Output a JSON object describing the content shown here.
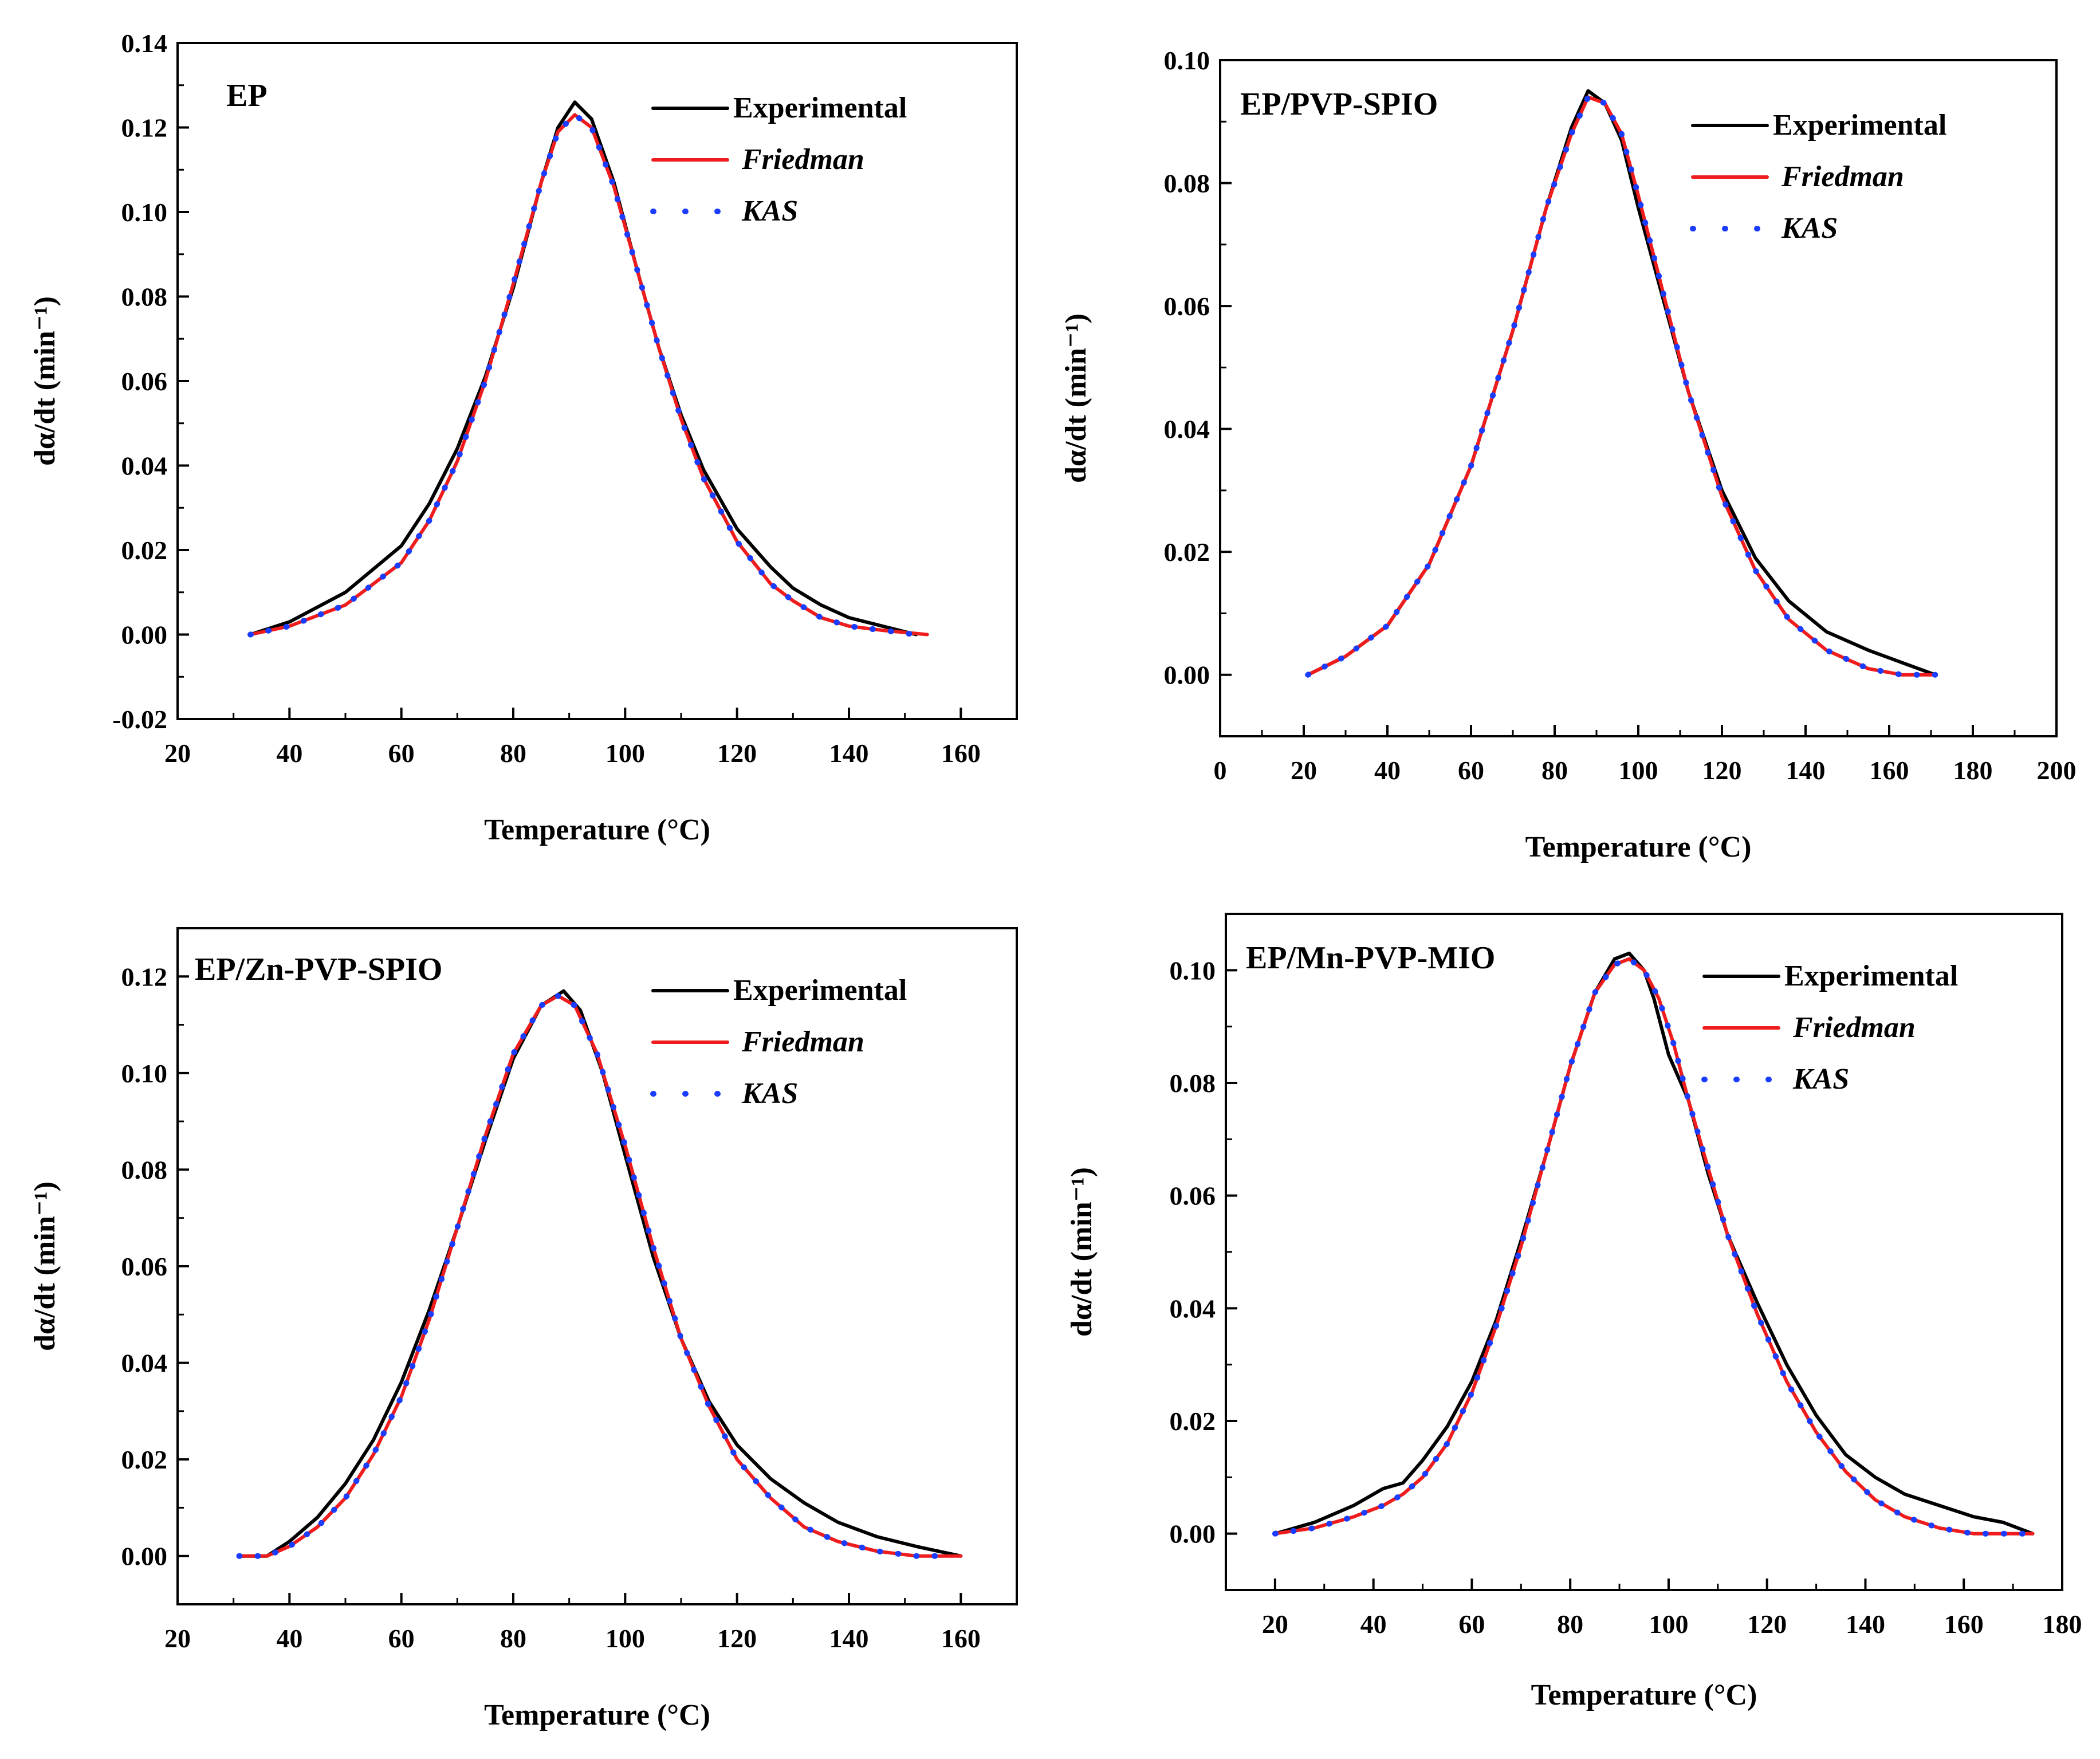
{
  "chart_data": [
    {
      "type": "line",
      "title": "EP",
      "xlabel": "Temperature (°C)",
      "ylabel": "dα/dt (min⁻¹)",
      "xlim": [
        20,
        170
      ],
      "ylim": [
        -0.02,
        0.14
      ],
      "xticks": [
        20,
        40,
        60,
        80,
        100,
        120,
        140,
        160
      ],
      "yticks": [
        -0.02,
        0.0,
        0.02,
        0.04,
        0.06,
        0.08,
        0.1,
        0.12,
        0.14
      ],
      "ytick_labels": [
        "-0.02",
        "0.00",
        "0.02",
        "0.04",
        "0.06",
        "0.08",
        "0.10",
        "0.12",
        "0.14"
      ],
      "legend": [
        "Experimental",
        "Friedman",
        "KAS"
      ],
      "legend_position": "top-right",
      "series": [
        {
          "name": "Experimental",
          "color": "#000000",
          "style": "solid",
          "x": [
            33,
            40,
            50,
            60,
            65,
            70,
            75,
            80,
            85,
            88,
            91,
            94,
            98,
            102,
            106,
            110,
            114,
            120,
            126,
            130,
            135,
            140,
            146,
            152
          ],
          "y": [
            0.0,
            0.003,
            0.01,
            0.021,
            0.031,
            0.044,
            0.061,
            0.082,
            0.107,
            0.12,
            0.126,
            0.122,
            0.107,
            0.087,
            0.068,
            0.052,
            0.039,
            0.025,
            0.016,
            0.011,
            0.007,
            0.004,
            0.002,
            0.0
          ]
        },
        {
          "name": "Friedman",
          "color": "#ee1c1c",
          "style": "solid",
          "x": [
            33,
            40,
            50,
            60,
            65,
            70,
            75,
            80,
            85,
            88,
            91,
            94,
            98,
            102,
            106,
            110,
            114,
            120,
            126,
            130,
            135,
            140,
            146,
            154
          ],
          "y": [
            0.0,
            0.002,
            0.007,
            0.017,
            0.027,
            0.041,
            0.06,
            0.083,
            0.107,
            0.119,
            0.123,
            0.12,
            0.106,
            0.087,
            0.068,
            0.051,
            0.037,
            0.022,
            0.012,
            0.008,
            0.004,
            0.002,
            0.001,
            0.0
          ]
        },
        {
          "name": "KAS",
          "color": "#1a3cff",
          "style": "dotted",
          "x": [
            33,
            40,
            50,
            60,
            65,
            70,
            75,
            80,
            85,
            88,
            91,
            94,
            98,
            102,
            106,
            110,
            114,
            120,
            126,
            130,
            135,
            140,
            146,
            152
          ],
          "y": [
            0.0,
            0.002,
            0.007,
            0.017,
            0.027,
            0.041,
            0.06,
            0.083,
            0.107,
            0.119,
            0.123,
            0.12,
            0.106,
            0.087,
            0.068,
            0.051,
            0.037,
            0.022,
            0.012,
            0.008,
            0.004,
            0.002,
            0.001,
            0.0
          ]
        }
      ]
    },
    {
      "type": "line",
      "title": "EP/PVP-SPIO",
      "xlabel": "Temperature (°C)",
      "ylabel": "dα/dt (min⁻¹)",
      "xlim": [
        0,
        200
      ],
      "ylim": [
        -0.01,
        0.1
      ],
      "xticks": [
        0,
        20,
        40,
        60,
        80,
        100,
        120,
        140,
        160,
        180,
        200
      ],
      "yticks": [
        0.0,
        0.02,
        0.04,
        0.06,
        0.08,
        0.1
      ],
      "ytick_labels": [
        "0.00",
        "0.02",
        "0.04",
        "0.06",
        "0.08",
        "0.10"
      ],
      "legend": [
        "Experimental",
        "Friedman",
        "KAS"
      ],
      "legend_position": "top-right",
      "series": [
        {
          "name": "Experimental",
          "color": "#000000",
          "style": "solid",
          "x": [
            21,
            30,
            40,
            50,
            60,
            70,
            78,
            84,
            88,
            92,
            96,
            100,
            106,
            112,
            120,
            128,
            136,
            145,
            155,
            163,
            171
          ],
          "y": [
            0.0,
            0.003,
            0.008,
            0.018,
            0.034,
            0.056,
            0.076,
            0.089,
            0.095,
            0.093,
            0.087,
            0.076,
            0.061,
            0.046,
            0.03,
            0.019,
            0.012,
            0.007,
            0.004,
            0.002,
            0.0
          ]
        },
        {
          "name": "Friedman",
          "color": "#ee1c1c",
          "style": "solid",
          "x": [
            21,
            30,
            40,
            50,
            60,
            70,
            78,
            84,
            88,
            92,
            96,
            100,
            106,
            112,
            120,
            128,
            136,
            145,
            155,
            163,
            171
          ],
          "y": [
            0.0,
            0.003,
            0.008,
            0.018,
            0.034,
            0.056,
            0.076,
            0.088,
            0.094,
            0.093,
            0.088,
            0.078,
            0.062,
            0.046,
            0.029,
            0.017,
            0.009,
            0.004,
            0.001,
            0.0,
            0.0
          ]
        },
        {
          "name": "KAS",
          "color": "#1a3cff",
          "style": "dotted",
          "x": [
            21,
            30,
            40,
            50,
            60,
            70,
            78,
            84,
            88,
            92,
            96,
            100,
            106,
            112,
            120,
            128,
            136,
            145,
            155,
            163,
            171
          ],
          "y": [
            0.0,
            0.003,
            0.008,
            0.018,
            0.034,
            0.056,
            0.076,
            0.088,
            0.094,
            0.093,
            0.088,
            0.078,
            0.062,
            0.046,
            0.029,
            0.017,
            0.009,
            0.004,
            0.001,
            0.0,
            0.0
          ]
        }
      ]
    },
    {
      "type": "line",
      "title": "EP/Zn-PVP-SPIO",
      "xlabel": "Temperature (°C)",
      "ylabel": "dα/dt (min⁻¹)",
      "xlim": [
        20,
        170
      ],
      "ylim": [
        -0.01,
        0.13
      ],
      "xticks": [
        20,
        40,
        60,
        80,
        100,
        120,
        140,
        160
      ],
      "yticks": [
        0.0,
        0.02,
        0.04,
        0.06,
        0.08,
        0.1,
        0.12
      ],
      "ytick_labels": [
        "0.00",
        "0.02",
        "0.04",
        "0.06",
        "0.08",
        "0.10",
        "0.12"
      ],
      "legend": [
        "Experimental",
        "Friedman",
        "KAS"
      ],
      "legend_position": "top-right",
      "series": [
        {
          "name": "Experimental",
          "color": "#000000",
          "style": "solid",
          "x": [
            31,
            36,
            40,
            45,
            50,
            55,
            60,
            65,
            70,
            75,
            80,
            85,
            89,
            92,
            96,
            100,
            105,
            110,
            115,
            120,
            126,
            132,
            138,
            145,
            152,
            160
          ],
          "y": [
            0.0,
            0.0,
            0.003,
            0.008,
            0.015,
            0.024,
            0.036,
            0.051,
            0.068,
            0.086,
            0.103,
            0.114,
            0.117,
            0.113,
            0.1,
            0.083,
            0.062,
            0.045,
            0.032,
            0.023,
            0.016,
            0.011,
            0.007,
            0.004,
            0.002,
            0.0
          ]
        },
        {
          "name": "Friedman",
          "color": "#ee1c1c",
          "style": "solid",
          "x": [
            31,
            36,
            40,
            45,
            50,
            55,
            60,
            65,
            70,
            75,
            80,
            85,
            88,
            91,
            95,
            100,
            105,
            110,
            115,
            120,
            126,
            132,
            138,
            145,
            152,
            160
          ],
          "y": [
            0.0,
            0.0,
            0.002,
            0.006,
            0.012,
            0.021,
            0.033,
            0.049,
            0.068,
            0.087,
            0.104,
            0.114,
            0.116,
            0.114,
            0.104,
            0.085,
            0.064,
            0.045,
            0.031,
            0.02,
            0.012,
            0.006,
            0.003,
            0.001,
            0.0,
            0.0
          ]
        },
        {
          "name": "KAS",
          "color": "#1a3cff",
          "style": "dotted",
          "x": [
            31,
            36,
            40,
            45,
            50,
            55,
            60,
            65,
            70,
            75,
            80,
            85,
            88,
            91,
            95,
            100,
            105,
            110,
            115,
            120,
            126,
            132,
            138,
            145,
            152,
            158
          ],
          "y": [
            0.0,
            0.0,
            0.002,
            0.006,
            0.012,
            0.021,
            0.033,
            0.049,
            0.068,
            0.087,
            0.104,
            0.114,
            0.116,
            0.114,
            0.104,
            0.085,
            0.064,
            0.045,
            0.031,
            0.02,
            0.012,
            0.006,
            0.003,
            0.001,
            0.0,
            0.0
          ]
        }
      ]
    },
    {
      "type": "line",
      "title": "EP/Mn-PVP-MIO",
      "xlabel": "Temperature (°C)",
      "ylabel": "dα/dt (min⁻¹)",
      "xlim": [
        10,
        180
      ],
      "ylim": [
        -0.01,
        0.11
      ],
      "xticks": [
        20,
        40,
        60,
        80,
        100,
        120,
        140,
        160,
        180
      ],
      "yticks": [
        0.0,
        0.02,
        0.04,
        0.06,
        0.08,
        0.1
      ],
      "ytick_labels": [
        "0.00",
        "0.02",
        "0.04",
        "0.06",
        "0.08",
        "0.10"
      ],
      "legend": [
        "Experimental",
        "Friedman",
        "KAS"
      ],
      "legend_position": "top-right",
      "series": [
        {
          "name": "Experimental",
          "color": "#000000",
          "style": "solid",
          "x": [
            20,
            28,
            36,
            42,
            46,
            50,
            55,
            60,
            65,
            70,
            75,
            80,
            85,
            89,
            92,
            95,
            97,
            100,
            104,
            108,
            112,
            118,
            124,
            130,
            136,
            142,
            148,
            155,
            162,
            168,
            174
          ],
          "y": [
            0.0,
            0.002,
            0.005,
            0.008,
            0.009,
            0.013,
            0.019,
            0.027,
            0.038,
            0.052,
            0.067,
            0.083,
            0.096,
            0.102,
            0.103,
            0.1,
            0.095,
            0.085,
            0.077,
            0.064,
            0.053,
            0.041,
            0.03,
            0.021,
            0.014,
            0.01,
            0.007,
            0.005,
            0.003,
            0.002,
            0.0
          ]
        },
        {
          "name": "Friedman",
          "color": "#ee1c1c",
          "style": "solid",
          "x": [
            20,
            28,
            36,
            42,
            46,
            50,
            55,
            60,
            65,
            70,
            75,
            80,
            85,
            89,
            92,
            95,
            98,
            101,
            104,
            108,
            112,
            118,
            124,
            130,
            136,
            142,
            148,
            155,
            162,
            168,
            174
          ],
          "y": [
            0.0,
            0.001,
            0.003,
            0.005,
            0.007,
            0.01,
            0.016,
            0.025,
            0.037,
            0.051,
            0.067,
            0.083,
            0.096,
            0.101,
            0.102,
            0.1,
            0.095,
            0.087,
            0.077,
            0.065,
            0.053,
            0.039,
            0.027,
            0.018,
            0.011,
            0.006,
            0.003,
            0.001,
            0.0,
            0.0,
            0.0
          ]
        },
        {
          "name": "KAS",
          "color": "#1a3cff",
          "style": "dotted",
          "x": [
            20,
            28,
            36,
            42,
            46,
            50,
            55,
            60,
            65,
            70,
            75,
            80,
            85,
            89,
            92,
            95,
            98,
            101,
            104,
            108,
            112,
            118,
            124,
            130,
            136,
            142,
            148,
            155,
            162,
            168,
            172
          ],
          "y": [
            0.0,
            0.001,
            0.003,
            0.005,
            0.007,
            0.01,
            0.016,
            0.025,
            0.037,
            0.051,
            0.067,
            0.083,
            0.096,
            0.101,
            0.102,
            0.1,
            0.095,
            0.087,
            0.077,
            0.065,
            0.053,
            0.039,
            0.027,
            0.018,
            0.011,
            0.006,
            0.003,
            0.001,
            0.0,
            0.0,
            0.0
          ]
        }
      ]
    }
  ]
}
